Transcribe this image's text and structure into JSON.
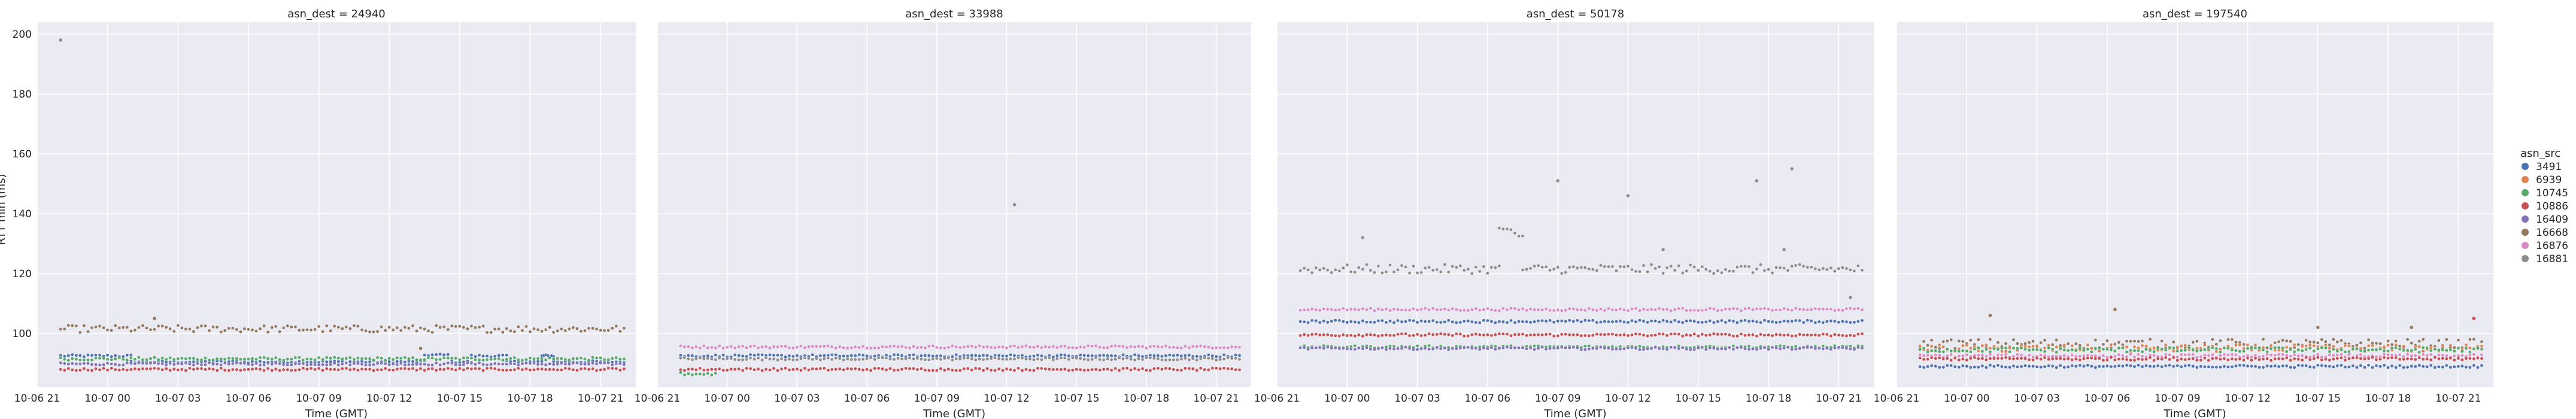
{
  "chart_data": {
    "type": "scatter",
    "facet_var": "asn_dest",
    "xlabel": "Time (GMT)",
    "ylabel": "RTT min (ms)",
    "x_range": [
      "2024-10-06 21:00",
      "2024-10-07 22:30"
    ],
    "x_ticks": [
      "10-06 21",
      "10-07 00",
      "10-07 03",
      "10-07 06",
      "10-07 09",
      "10-07 12",
      "10-07 15",
      "10-07 18",
      "10-07 21"
    ],
    "ylim": [
      82,
      204
    ],
    "y_ticks": [
      100,
      120,
      140,
      160,
      180,
      200
    ],
    "grid": true,
    "legend": {
      "title": "asn_src",
      "placement": "right",
      "entries": [
        {
          "label": "3491",
          "color": "#4c72b0"
        },
        {
          "label": "6939",
          "color": "#dd8452"
        },
        {
          "label": "10745",
          "color": "#55a868"
        },
        {
          "label": "10886",
          "color": "#c44e52"
        },
        {
          "label": "16409",
          "color": "#8172b3"
        },
        {
          "label": "16668",
          "color": "#937860"
        },
        {
          "label": "16876",
          "color": "#da8bc3"
        },
        {
          "label": "16881",
          "color": "#8c8c8c"
        }
      ]
    },
    "panels": [
      {
        "title": "asn_dest = 24940",
        "series": [
          {
            "src": "3491",
            "segments": [
              {
                "from": "2024-10-06 22:00",
                "to": "2024-10-07 01:00",
                "y": 92.5
              },
              {
                "from": "2024-10-07 01:00",
                "to": "2024-10-07 13:30",
                "y": 90.5
              },
              {
                "from": "2024-10-07 13:30",
                "to": "2024-10-07 14:30",
                "y": 92.8
              },
              {
                "from": "2024-10-07 14:30",
                "to": "2024-10-07 15:30",
                "y": 90.5
              },
              {
                "from": "2024-10-07 15:30",
                "to": "2024-10-07 17:00",
                "y": 92.5
              },
              {
                "from": "2024-10-07 17:00",
                "to": "2024-10-07 18:30",
                "y": 90.5
              },
              {
                "from": "2024-10-07 18:30",
                "to": "2024-10-07 19:00",
                "y": 92.5
              },
              {
                "from": "2024-10-07 19:00",
                "to": "2024-10-07 22:00",
                "y": 90.5
              }
            ],
            "spread": 0.4
          },
          {
            "src": "10745",
            "segments": [
              {
                "from": "2024-10-06 22:00",
                "to": "2024-10-07 22:00",
                "y": 91.5
              }
            ],
            "spread": 0.5
          },
          {
            "src": "16409",
            "segments": [
              {
                "from": "2024-10-06 22:00",
                "to": "2024-10-07 22:00",
                "y": 89.8
              }
            ],
            "spread": 0.4
          },
          {
            "src": "10886",
            "segments": [
              {
                "from": "2024-10-06 22:00",
                "to": "2024-10-07 22:00",
                "y": 88.0
              }
            ],
            "spread": 0.4
          },
          {
            "src": "16668",
            "segments": [
              {
                "from": "2024-10-06 22:00",
                "to": "2024-10-07 22:00",
                "y": 101.5
              }
            ],
            "spread": 1.2
          }
        ],
        "outliers": [
          {
            "x": "2024-10-06 22:00",
            "y": 198,
            "src": "16881"
          },
          {
            "x": "2024-10-07 02:00",
            "y": 105,
            "src": "16668"
          },
          {
            "x": "2024-10-07 13:20",
            "y": 95,
            "src": "16668"
          }
        ]
      },
      {
        "title": "asn_dest = 33988",
        "series": [
          {
            "src": "16876",
            "segments": [
              {
                "from": "2024-10-06 22:00",
                "to": "2024-10-07 22:00",
                "y": 95.5
              }
            ],
            "spread": 0.4
          },
          {
            "src": "3491",
            "segments": [
              {
                "from": "2024-10-06 22:00",
                "to": "2024-10-07 22:00",
                "y": 92.5
              }
            ],
            "spread": 0.4
          },
          {
            "src": "16881",
            "segments": [
              {
                "from": "2024-10-06 22:00",
                "to": "2024-10-07 22:00",
                "y": 91.5
              }
            ],
            "spread": 0.4
          },
          {
            "src": "10886",
            "segments": [
              {
                "from": "2024-10-06 22:00",
                "to": "2024-10-07 22:00",
                "y": 88.0
              }
            ],
            "spread": 0.4
          },
          {
            "src": "10745",
            "segments": [
              {
                "from": "2024-10-06 22:00",
                "to": "2024-10-06 23:30",
                "y": 86.5
              }
            ],
            "spread": 0.5
          }
        ],
        "outliers": [
          {
            "x": "2024-10-07 12:20",
            "y": 143,
            "src": "16881"
          }
        ]
      },
      {
        "title": "asn_dest = 50178",
        "series": [
          {
            "src": "16881",
            "segments": [
              {
                "from": "2024-10-06 22:00",
                "to": "2024-10-07 06:30",
                "y": 121.5
              },
              {
                "from": "2024-10-07 07:30",
                "to": "2024-10-07 22:00",
                "y": 121.5
              }
            ],
            "spread": 1.5
          },
          {
            "src": "16881",
            "segments": [
              {
                "from": "2024-10-07 06:30",
                "to": "2024-10-07 07:30",
                "y": 134.0
              }
            ],
            "spread": 1.5
          },
          {
            "src": "16876",
            "segments": [
              {
                "from": "2024-10-06 22:00",
                "to": "2024-10-07 22:00",
                "y": 108.0
              }
            ],
            "spread": 0.4
          },
          {
            "src": "3491",
            "segments": [
              {
                "from": "2024-10-06 22:00",
                "to": "2024-10-07 22:00",
                "y": 104.0
              }
            ],
            "spread": 0.4
          },
          {
            "src": "10886",
            "segments": [
              {
                "from": "2024-10-06 22:00",
                "to": "2024-10-07 22:00",
                "y": 99.5
              }
            ],
            "spread": 0.4
          },
          {
            "src": "10745",
            "segments": [
              {
                "from": "2024-10-06 22:00",
                "to": "2024-10-07 22:00",
                "y": 95.5
              }
            ],
            "spread": 0.4
          },
          {
            "src": "16409",
            "segments": [
              {
                "from": "2024-10-06 22:00",
                "to": "2024-10-07 22:00",
                "y": 95.0
              }
            ],
            "spread": 0.4
          }
        ],
        "outliers": [
          {
            "x": "2024-10-07 09:00",
            "y": 151,
            "src": "16881"
          },
          {
            "x": "2024-10-07 12:00",
            "y": 146,
            "src": "16881"
          },
          {
            "x": "2024-10-07 17:30",
            "y": 151,
            "src": "16881"
          },
          {
            "x": "2024-10-07 19:00",
            "y": 155,
            "src": "16881"
          },
          {
            "x": "2024-10-07 18:40",
            "y": 128,
            "src": "16881"
          },
          {
            "x": "2024-10-07 00:40",
            "y": 132,
            "src": "16881"
          },
          {
            "x": "2024-10-07 13:30",
            "y": 128,
            "src": "16881"
          },
          {
            "x": "2024-10-07 21:30",
            "y": 112,
            "src": "16881"
          }
        ]
      },
      {
        "title": "asn_dest = 197540",
        "series": [
          {
            "src": "16668",
            "segments": [
              {
                "from": "2024-10-06 22:00",
                "to": "2024-10-07 22:00",
                "y": 96.5
              }
            ],
            "spread": 1.6
          },
          {
            "src": "6939",
            "segments": [
              {
                "from": "2024-10-06 22:00",
                "to": "2024-10-07 22:00",
                "y": 95.0
              }
            ],
            "spread": 1.2
          },
          {
            "src": "10745",
            "segments": [
              {
                "from": "2024-10-06 22:00",
                "to": "2024-10-07 22:00",
                "y": 94.5
              }
            ],
            "spread": 0.8
          },
          {
            "src": "16876",
            "segments": [
              {
                "from": "2024-10-06 22:00",
                "to": "2024-10-07 22:00",
                "y": 92.5
              }
            ],
            "spread": 0.5
          },
          {
            "src": "10886",
            "segments": [
              {
                "from": "2024-10-06 22:00",
                "to": "2024-10-07 22:00",
                "y": 91.5
              }
            ],
            "spread": 0.5
          },
          {
            "src": "3491",
            "segments": [
              {
                "from": "2024-10-06 22:00",
                "to": "2024-10-07 22:00",
                "y": 89.0
              }
            ],
            "spread": 0.4
          }
        ],
        "outliers": [
          {
            "x": "2024-10-07 06:20",
            "y": 108,
            "src": "16668"
          },
          {
            "x": "2024-10-07 21:40",
            "y": 105,
            "src": "10886"
          },
          {
            "x": "2024-10-07 01:00",
            "y": 106,
            "src": "16668"
          },
          {
            "x": "2024-10-07 15:00",
            "y": 102,
            "src": "16668"
          },
          {
            "x": "2024-10-07 19:00",
            "y": 102,
            "src": "16668"
          }
        ]
      }
    ]
  }
}
